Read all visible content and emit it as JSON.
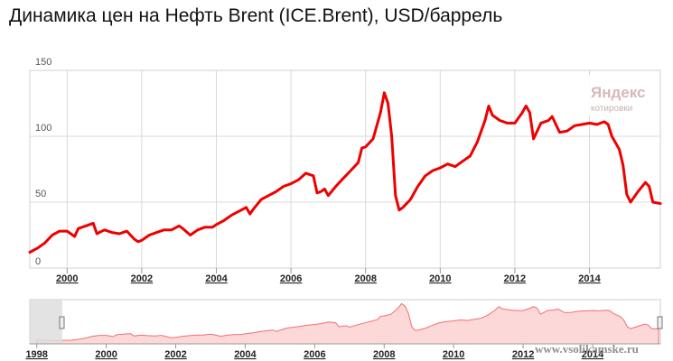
{
  "page": {
    "title": "Динамика цен на Нефть Brent (ICE.Brent), USD/баррель",
    "watermark": {
      "brand": "Яндекс",
      "sub": "котировки"
    },
    "site": "www.vsolikamske.ru"
  },
  "chart_data": {
    "type": "line",
    "title": "Динамика цен на Нефть Brent (ICE.Brent), USD/баррель",
    "xlabel": "",
    "ylabel": "",
    "ylim": [
      0,
      150
    ],
    "xlim": [
      1999.0,
      2015.9
    ],
    "yticks": [
      "0",
      "50",
      "100",
      "150"
    ],
    "xticks": [
      "2000",
      "2002",
      "2004",
      "2006",
      "2008",
      "2010",
      "2012",
      "2014"
    ],
    "grid": true,
    "color": "#ee0000",
    "series": [
      {
        "x": [
          1999.0,
          1999.2,
          1999.4,
          1999.6,
          1999.8,
          2000.0,
          2000.2,
          2000.3,
          2000.5,
          2000.7,
          2000.8,
          2001.0,
          2001.2,
          2001.4,
          2001.6,
          2001.8,
          2001.9,
          2002.0,
          2002.2,
          2002.4,
          2002.6,
          2002.8,
          2003.0,
          2003.1,
          2003.3,
          2003.5,
          2003.7,
          2003.9,
          2004.0,
          2004.2,
          2004.4,
          2004.6,
          2004.8,
          2004.9,
          2005.0,
          2005.2,
          2005.4,
          2005.6,
          2005.8,
          2006.0,
          2006.2,
          2006.4,
          2006.6,
          2006.7,
          2006.8,
          2006.9,
          2007.0,
          2007.2,
          2007.4,
          2007.6,
          2007.8,
          2007.9,
          2008.0,
          2008.2,
          2008.4,
          2008.5,
          2008.6,
          2008.7,
          2008.8,
          2008.9,
          2009.0,
          2009.2,
          2009.4,
          2009.6,
          2009.8,
          2010.0,
          2010.2,
          2010.4,
          2010.6,
          2010.8,
          2011.0,
          2011.2,
          2011.3,
          2011.4,
          2011.6,
          2011.8,
          2012.0,
          2012.2,
          2012.3,
          2012.4,
          2012.5,
          2012.7,
          2012.9,
          2013.0,
          2013.2,
          2013.4,
          2013.6,
          2013.8,
          2014.0,
          2014.2,
          2014.4,
          2014.5,
          2014.6,
          2014.8,
          2014.9,
          2015.0,
          2015.1,
          2015.3,
          2015.5,
          2015.6,
          2015.7,
          2015.9
        ],
        "y": [
          12,
          15,
          19,
          25,
          28,
          28,
          24,
          30,
          32,
          34,
          26,
          29,
          27,
          26,
          28,
          22,
          20,
          21,
          25,
          27,
          29,
          29,
          32,
          30,
          25,
          29,
          31,
          31,
          33,
          36,
          40,
          43,
          46,
          41,
          45,
          52,
          55,
          58,
          62,
          64,
          67,
          72,
          70,
          57,
          58,
          60,
          55,
          62,
          68,
          74,
          80,
          91,
          92,
          98,
          118,
          133,
          125,
          100,
          55,
          44,
          46,
          52,
          62,
          70,
          74,
          76,
          79,
          77,
          81,
          85,
          96,
          112,
          123,
          116,
          112,
          110,
          110,
          118,
          123,
          118,
          98,
          110,
          112,
          115,
          103,
          104,
          108,
          109,
          110,
          109,
          111,
          109,
          100,
          90,
          78,
          56,
          50,
          58,
          65,
          62,
          50,
          49
        ]
      }
    ],
    "navigator": {
      "xticks": [
        "1998",
        "2000",
        "2002",
        "2004",
        "2006",
        "2008",
        "2010",
        "2012",
        "2014"
      ]
    }
  }
}
